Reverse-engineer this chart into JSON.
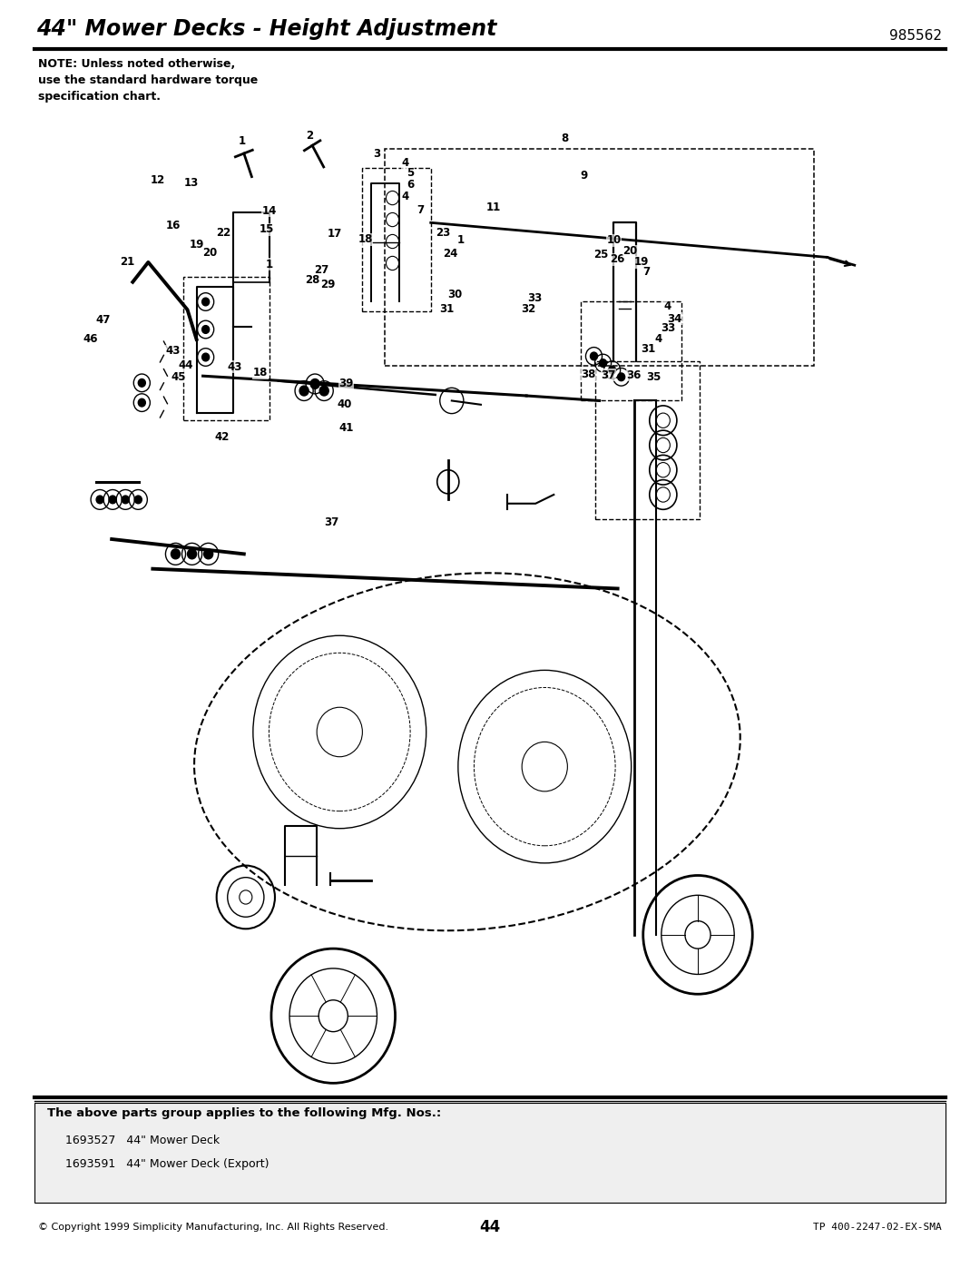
{
  "title": "44\" Mower Decks - Height Adjustment",
  "part_number": "985562",
  "note_text": "NOTE: Unless noted otherwise,\nuse the standard hardware torque\nspecification chart.",
  "footer_box_title": "The above parts group applies to the following Mfg. Nos.:",
  "footer_items": [
    "1693527   44\" Mower Deck",
    "1693591   44\" Mower Deck (Export)"
  ],
  "copyright": "© Copyright 1999 Simplicity Manufacturing, Inc. All Rights Reserved.",
  "page_number": "44",
  "doc_number": "TP 400-2247-02-EX-SMA",
  "bg_color": "#ffffff",
  "text_color": "#000000"
}
